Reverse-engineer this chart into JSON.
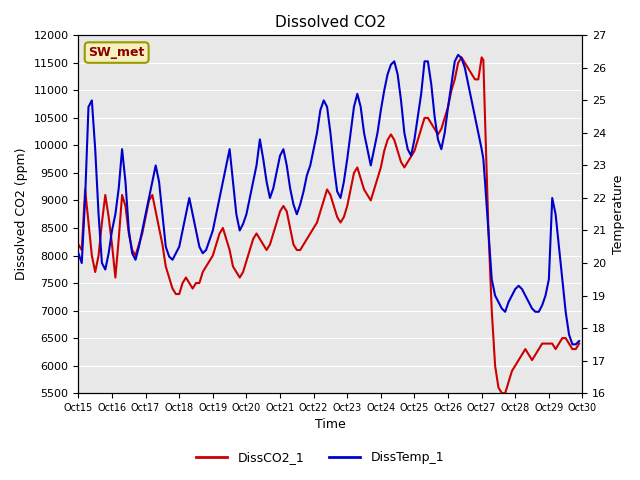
{
  "title": "Dissolved CO2",
  "xlabel": "Time",
  "ylabel_left": "Dissolved CO2 (ppm)",
  "ylabel_right": "Temperature",
  "ylim_left": [
    5500,
    12000
  ],
  "ylim_right": [
    16.0,
    27.0
  ],
  "yticks_left": [
    5500,
    6000,
    6500,
    7000,
    7500,
    8000,
    8500,
    9000,
    9500,
    10000,
    10500,
    11000,
    11500,
    12000
  ],
  "yticks_right": [
    16.0,
    17.0,
    18.0,
    19.0,
    20.0,
    21.0,
    22.0,
    23.0,
    24.0,
    25.0,
    26.0,
    27.0
  ],
  "xtick_labels": [
    "Oct 15",
    "Oct 16",
    "Oct 17",
    "Oct 18",
    "Oct 19",
    "Oct 20",
    "Oct 21",
    "Oct 22",
    "Oct 23",
    "Oct 24",
    "Oct 25",
    "Oct 26",
    "Oct 27",
    "Oct 28",
    "Oct 29",
    "Oct 30"
  ],
  "co2_color": "#cc0000",
  "temp_color": "#0000cc",
  "co2_label": "DissCO2_1",
  "temp_label": "DissTemp_1",
  "station_label": "SW_met",
  "bg_color": "#e8e8e8",
  "title_fontsize": 11,
  "co2_x": [
    15.0,
    15.1,
    15.2,
    15.3,
    15.4,
    15.5,
    15.6,
    15.7,
    15.8,
    15.9,
    16.0,
    16.1,
    16.2,
    16.3,
    16.4,
    16.5,
    16.6,
    16.7,
    16.8,
    16.9,
    17.0,
    17.1,
    17.2,
    17.3,
    17.4,
    17.5,
    17.6,
    17.7,
    17.8,
    17.9,
    18.0,
    18.1,
    18.2,
    18.3,
    18.4,
    18.5,
    18.6,
    18.7,
    18.8,
    18.9,
    19.0,
    19.1,
    19.2,
    19.3,
    19.4,
    19.5,
    19.6,
    19.7,
    19.8,
    19.9,
    20.0,
    20.1,
    20.2,
    20.3,
    20.4,
    20.5,
    20.6,
    20.7,
    20.8,
    20.9,
    21.0,
    21.1,
    21.2,
    21.3,
    21.4,
    21.5,
    21.6,
    21.7,
    21.8,
    21.9,
    22.0,
    22.1,
    22.2,
    22.3,
    22.4,
    22.5,
    22.6,
    22.7,
    22.8,
    22.9,
    23.0,
    23.1,
    23.2,
    23.3,
    23.4,
    23.5,
    23.6,
    23.7,
    23.8,
    23.9,
    24.0,
    24.1,
    24.2,
    24.3,
    24.4,
    24.5,
    24.6,
    24.7,
    24.8,
    24.9,
    25.0,
    25.1,
    25.2,
    25.3,
    25.4,
    25.5,
    25.6,
    25.7,
    25.8,
    25.9,
    26.0,
    26.1,
    26.2,
    26.3,
    26.4,
    26.5,
    26.6,
    26.7,
    26.8,
    26.9,
    27.0,
    27.05,
    27.1,
    27.2,
    27.3,
    27.4,
    27.5,
    27.6,
    27.7,
    27.8,
    27.9,
    28.0,
    28.1,
    28.2,
    28.3,
    28.4,
    28.5,
    28.6,
    28.7,
    28.8,
    28.9,
    29.0,
    29.1,
    29.2,
    29.3,
    29.4,
    29.5,
    29.6,
    29.7,
    29.8,
    29.9
  ],
  "co2_y": [
    8200,
    8100,
    9200,
    8600,
    8000,
    7700,
    8000,
    8600,
    9100,
    8700,
    8200,
    7600,
    8300,
    9100,
    8900,
    8400,
    8100,
    8000,
    8200,
    8400,
    8700,
    9000,
    9100,
    8800,
    8500,
    8200,
    7800,
    7600,
    7400,
    7300,
    7300,
    7500,
    7600,
    7500,
    7400,
    7500,
    7500,
    7700,
    7800,
    7900,
    8000,
    8200,
    8400,
    8500,
    8300,
    8100,
    7800,
    7700,
    7600,
    7700,
    7900,
    8100,
    8300,
    8400,
    8300,
    8200,
    8100,
    8200,
    8400,
    8600,
    8800,
    8900,
    8800,
    8500,
    8200,
    8100,
    8100,
    8200,
    8300,
    8400,
    8500,
    8600,
    8800,
    9000,
    9200,
    9100,
    8900,
    8700,
    8600,
    8700,
    8900,
    9200,
    9500,
    9600,
    9400,
    9200,
    9100,
    9000,
    9200,
    9400,
    9600,
    9900,
    10100,
    10200,
    10100,
    9900,
    9700,
    9600,
    9700,
    9800,
    9900,
    10100,
    10300,
    10500,
    10500,
    10400,
    10300,
    10200,
    10300,
    10500,
    10700,
    11000,
    11200,
    11500,
    11600,
    11500,
    11400,
    11300,
    11200,
    11200,
    11600,
    11550,
    10500,
    8500,
    7000,
    6000,
    5600,
    5500,
    5500,
    5700,
    5900,
    6000,
    6100,
    6200,
    6300,
    6200,
    6100,
    6200,
    6300,
    6400,
    6400,
    6400,
    6400,
    6300,
    6400,
    6500,
    6500,
    6400,
    6300,
    6300,
    6400
  ],
  "temp_x": [
    15.0,
    15.1,
    15.2,
    15.3,
    15.4,
    15.5,
    15.6,
    15.7,
    15.8,
    15.9,
    16.0,
    16.1,
    16.2,
    16.3,
    16.4,
    16.5,
    16.6,
    16.7,
    16.8,
    16.9,
    17.0,
    17.1,
    17.2,
    17.3,
    17.4,
    17.5,
    17.6,
    17.7,
    17.8,
    17.9,
    18.0,
    18.1,
    18.2,
    18.3,
    18.4,
    18.5,
    18.6,
    18.7,
    18.8,
    18.9,
    19.0,
    19.1,
    19.2,
    19.3,
    19.4,
    19.5,
    19.6,
    19.7,
    19.8,
    19.9,
    20.0,
    20.1,
    20.2,
    20.3,
    20.4,
    20.5,
    20.6,
    20.7,
    20.8,
    20.9,
    21.0,
    21.1,
    21.2,
    21.3,
    21.4,
    21.5,
    21.6,
    21.7,
    21.8,
    21.9,
    22.0,
    22.1,
    22.2,
    22.3,
    22.4,
    22.5,
    22.6,
    22.7,
    22.8,
    22.9,
    23.0,
    23.1,
    23.2,
    23.3,
    23.4,
    23.5,
    23.6,
    23.7,
    23.8,
    23.9,
    24.0,
    24.1,
    24.2,
    24.3,
    24.4,
    24.5,
    24.6,
    24.7,
    24.8,
    24.9,
    25.0,
    25.1,
    25.2,
    25.3,
    25.4,
    25.5,
    25.6,
    25.7,
    25.8,
    25.9,
    26.0,
    26.1,
    26.2,
    26.3,
    26.4,
    26.5,
    26.6,
    26.7,
    26.8,
    26.9,
    27.0,
    27.05,
    27.1,
    27.2,
    27.3,
    27.4,
    27.5,
    27.6,
    27.7,
    27.8,
    27.9,
    28.0,
    28.1,
    28.2,
    28.3,
    28.4,
    28.5,
    28.6,
    28.7,
    28.8,
    28.9,
    29.0,
    29.1,
    29.2,
    29.3,
    29.4,
    29.5,
    29.6,
    29.7,
    29.8,
    29.9
  ],
  "temp_y": [
    20.3,
    20.0,
    22.0,
    24.8,
    25.0,
    23.5,
    21.5,
    20.0,
    19.8,
    20.3,
    21.0,
    21.5,
    22.3,
    23.5,
    22.5,
    21.0,
    20.3,
    20.1,
    20.5,
    21.0,
    21.5,
    22.0,
    22.5,
    23.0,
    22.5,
    21.5,
    20.5,
    20.2,
    20.1,
    20.3,
    20.5,
    21.0,
    21.5,
    22.0,
    21.5,
    21.0,
    20.5,
    20.3,
    20.4,
    20.7,
    21.0,
    21.5,
    22.0,
    22.5,
    23.0,
    23.5,
    22.5,
    21.5,
    21.0,
    21.2,
    21.5,
    22.0,
    22.5,
    23.0,
    23.8,
    23.2,
    22.5,
    22.0,
    22.3,
    22.8,
    23.3,
    23.5,
    23.0,
    22.3,
    21.8,
    21.5,
    21.8,
    22.2,
    22.7,
    23.0,
    23.5,
    24.0,
    24.7,
    25.0,
    24.8,
    24.0,
    23.0,
    22.2,
    22.0,
    22.5,
    23.2,
    24.0,
    24.8,
    25.2,
    24.8,
    24.0,
    23.5,
    23.0,
    23.5,
    24.0,
    24.7,
    25.3,
    25.8,
    26.1,
    26.2,
    25.8,
    25.0,
    24.0,
    23.5,
    23.3,
    23.8,
    24.5,
    25.2,
    26.2,
    26.2,
    25.5,
    24.5,
    23.8,
    23.5,
    24.0,
    24.8,
    25.5,
    26.2,
    26.4,
    26.3,
    26.0,
    25.5,
    25.0,
    24.5,
    24.0,
    23.5,
    23.2,
    22.5,
    21.0,
    19.5,
    19.0,
    18.8,
    18.6,
    18.5,
    18.8,
    19.0,
    19.2,
    19.3,
    19.2,
    19.0,
    18.8,
    18.6,
    18.5,
    18.5,
    18.7,
    19.0,
    19.5,
    22.0,
    21.5,
    20.5,
    19.5,
    18.5,
    17.8,
    17.5,
    17.5,
    17.6
  ]
}
